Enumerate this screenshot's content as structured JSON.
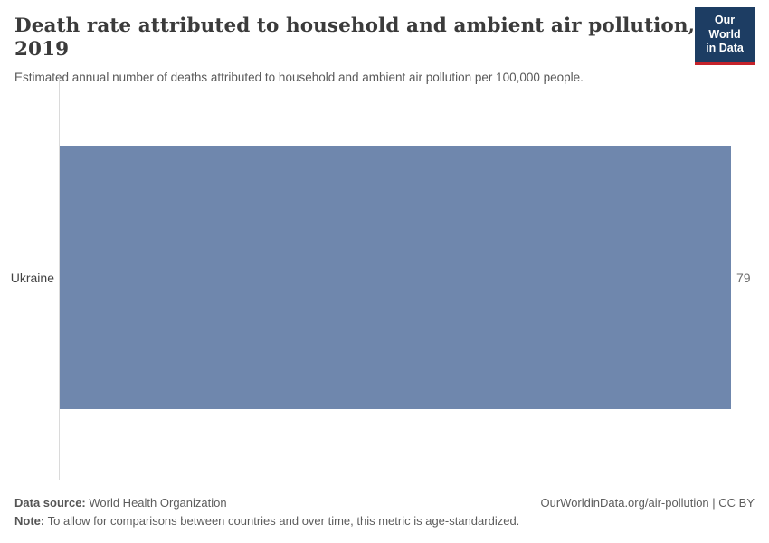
{
  "header": {
    "title": "Death rate attributed to household and ambient air pollution, 2019",
    "subtitle": "Estimated annual number of deaths attributed to household and ambient air pollution per 100,000 people.",
    "logo": {
      "line1": "Our World",
      "line2": "in Data"
    }
  },
  "chart_data": {
    "type": "bar",
    "orientation": "horizontal",
    "categories": [
      "Ukraine"
    ],
    "values": [
      79
    ],
    "title": "Death rate attributed to household and ambient air pollution, 2019",
    "xlabel": "",
    "ylabel": "",
    "xlim": [
      0,
      79
    ],
    "grid": false,
    "legend": false,
    "bar_color": "#6f87ad"
  },
  "footer": {
    "datasource_label": "Data source:",
    "datasource_value": " World Health Organization",
    "note_label": "Note:",
    "note_value": " To allow for comparisons between countries and over time, this metric is age-standardized.",
    "link": "OurWorldinData.org/air-pollution | CC BY"
  },
  "colors": {
    "bar": "#6f87ad",
    "axis_line": "#dadada",
    "title_text": "#3b3b3b",
    "subtitle_text": "#595959",
    "footer_text": "#5c5c5c",
    "logo_navy": "#1d3d63",
    "logo_red": "#c5232b"
  }
}
